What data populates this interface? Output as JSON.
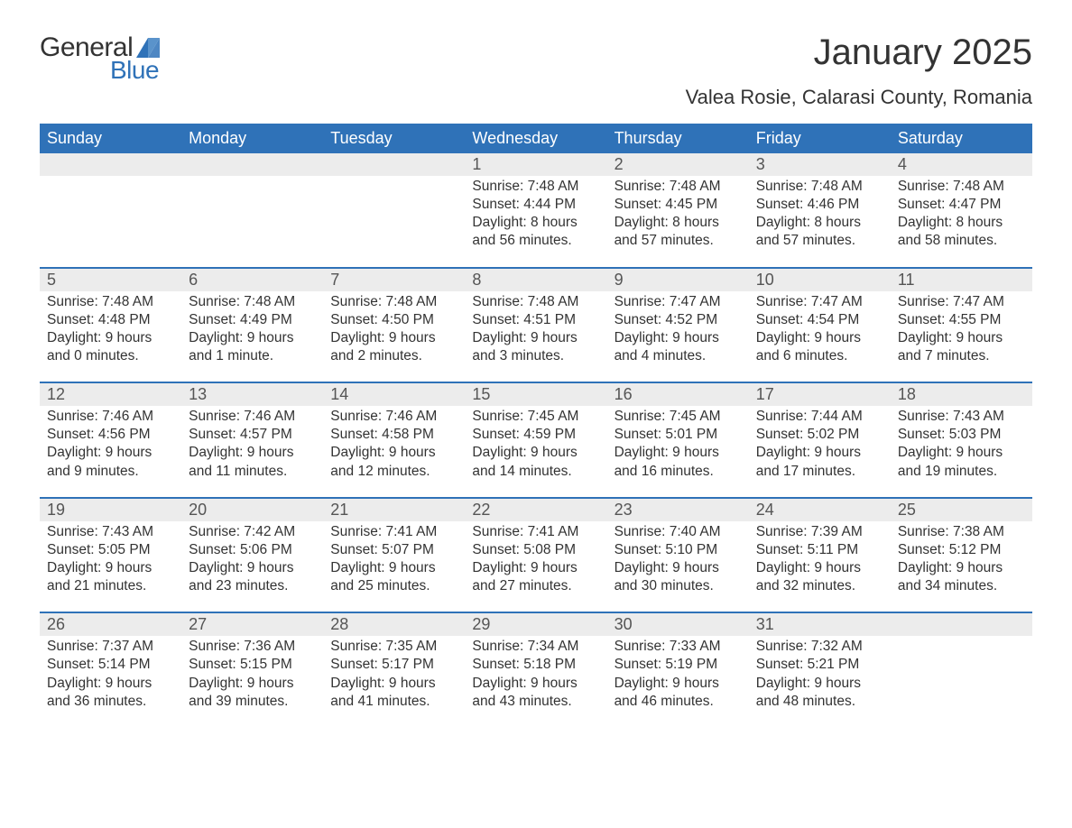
{
  "logo": {
    "text1": "General",
    "text2": "Blue",
    "triangle_color": "#2f72b8"
  },
  "title": "January 2025",
  "location": "Valea Rosie, Calarasi County, Romania",
  "colors": {
    "header_bg": "#2f72b8",
    "header_text": "#ffffff",
    "daynum_bg": "#ececec",
    "text": "#333333",
    "rule": "#2f72b8"
  },
  "dow": [
    "Sunday",
    "Monday",
    "Tuesday",
    "Wednesday",
    "Thursday",
    "Friday",
    "Saturday"
  ],
  "weeks": [
    [
      null,
      null,
      null,
      {
        "n": "1",
        "sr": "7:48 AM",
        "ss": "4:44 PM",
        "dl": "8 hours and 56 minutes."
      },
      {
        "n": "2",
        "sr": "7:48 AM",
        "ss": "4:45 PM",
        "dl": "8 hours and 57 minutes."
      },
      {
        "n": "3",
        "sr": "7:48 AM",
        "ss": "4:46 PM",
        "dl": "8 hours and 57 minutes."
      },
      {
        "n": "4",
        "sr": "7:48 AM",
        "ss": "4:47 PM",
        "dl": "8 hours and 58 minutes."
      }
    ],
    [
      {
        "n": "5",
        "sr": "7:48 AM",
        "ss": "4:48 PM",
        "dl": "9 hours and 0 minutes."
      },
      {
        "n": "6",
        "sr": "7:48 AM",
        "ss": "4:49 PM",
        "dl": "9 hours and 1 minute."
      },
      {
        "n": "7",
        "sr": "7:48 AM",
        "ss": "4:50 PM",
        "dl": "9 hours and 2 minutes."
      },
      {
        "n": "8",
        "sr": "7:48 AM",
        "ss": "4:51 PM",
        "dl": "9 hours and 3 minutes."
      },
      {
        "n": "9",
        "sr": "7:47 AM",
        "ss": "4:52 PM",
        "dl": "9 hours and 4 minutes."
      },
      {
        "n": "10",
        "sr": "7:47 AM",
        "ss": "4:54 PM",
        "dl": "9 hours and 6 minutes."
      },
      {
        "n": "11",
        "sr": "7:47 AM",
        "ss": "4:55 PM",
        "dl": "9 hours and 7 minutes."
      }
    ],
    [
      {
        "n": "12",
        "sr": "7:46 AM",
        "ss": "4:56 PM",
        "dl": "9 hours and 9 minutes."
      },
      {
        "n": "13",
        "sr": "7:46 AM",
        "ss": "4:57 PM",
        "dl": "9 hours and 11 minutes."
      },
      {
        "n": "14",
        "sr": "7:46 AM",
        "ss": "4:58 PM",
        "dl": "9 hours and 12 minutes."
      },
      {
        "n": "15",
        "sr": "7:45 AM",
        "ss": "4:59 PM",
        "dl": "9 hours and 14 minutes."
      },
      {
        "n": "16",
        "sr": "7:45 AM",
        "ss": "5:01 PM",
        "dl": "9 hours and 16 minutes."
      },
      {
        "n": "17",
        "sr": "7:44 AM",
        "ss": "5:02 PM",
        "dl": "9 hours and 17 minutes."
      },
      {
        "n": "18",
        "sr": "7:43 AM",
        "ss": "5:03 PM",
        "dl": "9 hours and 19 minutes."
      }
    ],
    [
      {
        "n": "19",
        "sr": "7:43 AM",
        "ss": "5:05 PM",
        "dl": "9 hours and 21 minutes."
      },
      {
        "n": "20",
        "sr": "7:42 AM",
        "ss": "5:06 PM",
        "dl": "9 hours and 23 minutes."
      },
      {
        "n": "21",
        "sr": "7:41 AM",
        "ss": "5:07 PM",
        "dl": "9 hours and 25 minutes."
      },
      {
        "n": "22",
        "sr": "7:41 AM",
        "ss": "5:08 PM",
        "dl": "9 hours and 27 minutes."
      },
      {
        "n": "23",
        "sr": "7:40 AM",
        "ss": "5:10 PM",
        "dl": "9 hours and 30 minutes."
      },
      {
        "n": "24",
        "sr": "7:39 AM",
        "ss": "5:11 PM",
        "dl": "9 hours and 32 minutes."
      },
      {
        "n": "25",
        "sr": "7:38 AM",
        "ss": "5:12 PM",
        "dl": "9 hours and 34 minutes."
      }
    ],
    [
      {
        "n": "26",
        "sr": "7:37 AM",
        "ss": "5:14 PM",
        "dl": "9 hours and 36 minutes."
      },
      {
        "n": "27",
        "sr": "7:36 AM",
        "ss": "5:15 PM",
        "dl": "9 hours and 39 minutes."
      },
      {
        "n": "28",
        "sr": "7:35 AM",
        "ss": "5:17 PM",
        "dl": "9 hours and 41 minutes."
      },
      {
        "n": "29",
        "sr": "7:34 AM",
        "ss": "5:18 PM",
        "dl": "9 hours and 43 minutes."
      },
      {
        "n": "30",
        "sr": "7:33 AM",
        "ss": "5:19 PM",
        "dl": "9 hours and 46 minutes."
      },
      {
        "n": "31",
        "sr": "7:32 AM",
        "ss": "5:21 PM",
        "dl": "9 hours and 48 minutes."
      },
      null
    ]
  ],
  "labels": {
    "sunrise": "Sunrise:",
    "sunset": "Sunset:",
    "daylight": "Daylight:"
  }
}
